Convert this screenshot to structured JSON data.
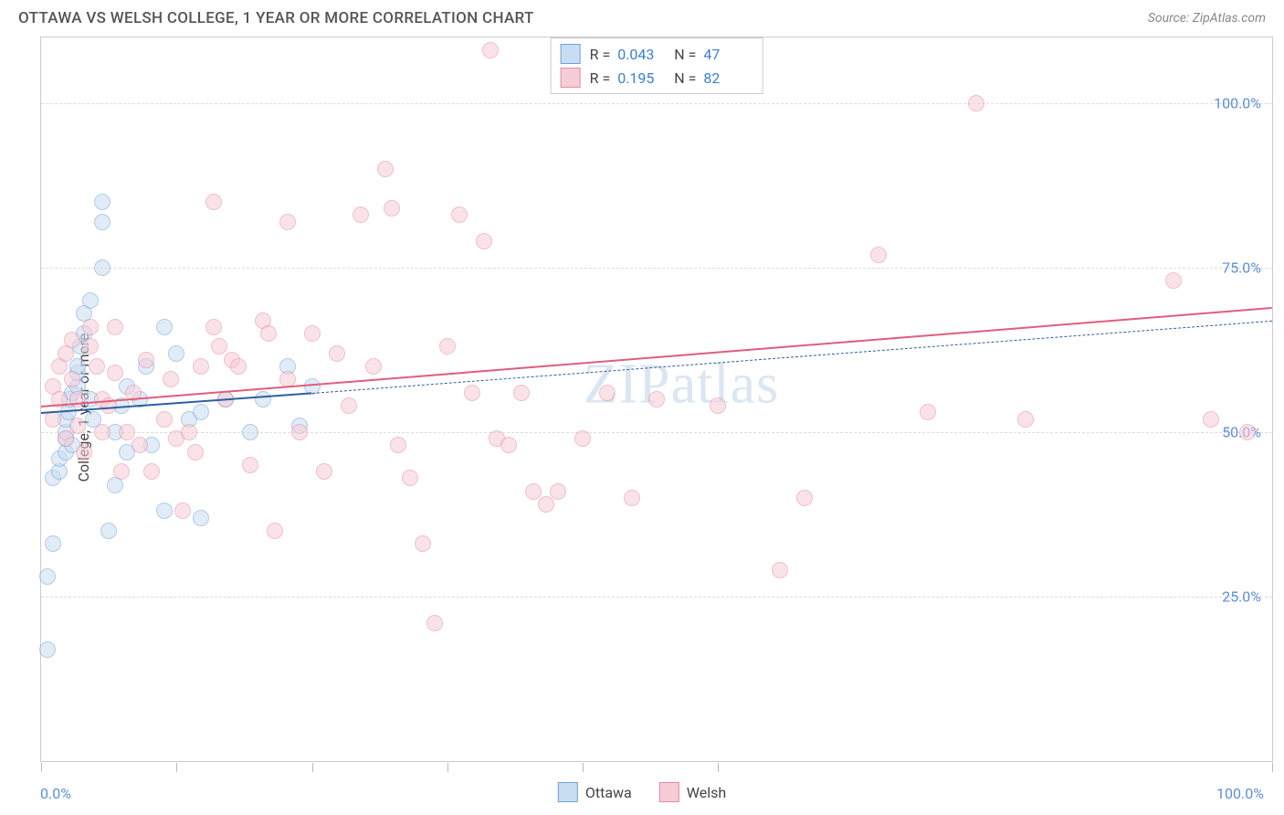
{
  "header": {
    "title": "OTTAWA VS WELSH COLLEGE, 1 YEAR OR MORE CORRELATION CHART",
    "source": "Source: ZipAtlas.com"
  },
  "chart": {
    "type": "scatter",
    "ylabel": "College, 1 year or more",
    "watermark": "ZIPatlas",
    "background_color": "#ffffff",
    "grid_color": "#dddddd",
    "border_color": "#cccccc",
    "xlim": [
      0,
      100
    ],
    "ylim": [
      0,
      110
    ],
    "y_ticks": [
      25,
      50,
      75,
      100
    ],
    "y_tick_labels": [
      "25.0%",
      "50.0%",
      "75.0%",
      "100.0%"
    ],
    "x_tick_positions": [
      0,
      11,
      22,
      33,
      44,
      55,
      100
    ],
    "x_axis_labels": [
      {
        "pos": 0,
        "text": "0.0%"
      },
      {
        "pos": 100,
        "text": "100.0%"
      }
    ],
    "tick_label_color": "#5b8fd6",
    "marker_radius": 9,
    "marker_border_width": 1.5,
    "series": [
      {
        "name": "Ottawa",
        "fill": "#c9ddf2",
        "stroke": "#6fa3d9",
        "fill_opacity": 0.55,
        "R": "0.043",
        "N": "47",
        "trend": {
          "x0": 0,
          "y0": 53,
          "x1": 22,
          "y1": 56,
          "color": "#2e5fa3",
          "width": 2.5,
          "dash": "solid",
          "extend_x1": 100,
          "extend_y1": 67,
          "extend_dash": "5,4",
          "extend_width": 1.4
        },
        "points": [
          [
            0.5,
            17
          ],
          [
            0.5,
            28
          ],
          [
            1,
            33
          ],
          [
            1,
            43
          ],
          [
            1.5,
            44
          ],
          [
            1.5,
            46
          ],
          [
            2,
            47
          ],
          [
            2,
            49
          ],
          [
            2,
            50
          ],
          [
            2,
            52
          ],
          [
            2.2,
            53
          ],
          [
            2.3,
            55
          ],
          [
            2.5,
            56
          ],
          [
            2.5,
            48
          ],
          [
            3,
            57
          ],
          [
            3,
            59
          ],
          [
            3,
            60
          ],
          [
            3.2,
            63
          ],
          [
            3.5,
            65
          ],
          [
            3.5,
            68
          ],
          [
            4,
            70
          ],
          [
            4,
            55
          ],
          [
            4.2,
            52
          ],
          [
            5,
            75
          ],
          [
            5,
            85
          ],
          [
            5,
            82
          ],
          [
            5.5,
            35
          ],
          [
            6,
            42
          ],
          [
            6,
            50
          ],
          [
            6.5,
            54
          ],
          [
            7,
            47
          ],
          [
            7,
            57
          ],
          [
            8,
            55
          ],
          [
            8.5,
            60
          ],
          [
            9,
            48
          ],
          [
            10,
            38
          ],
          [
            10,
            66
          ],
          [
            11,
            62
          ],
          [
            12,
            52
          ],
          [
            13,
            37
          ],
          [
            13,
            53
          ],
          [
            15,
            55
          ],
          [
            17,
            50
          ],
          [
            18,
            55
          ],
          [
            20,
            60
          ],
          [
            21,
            51
          ],
          [
            22,
            57
          ]
        ]
      },
      {
        "name": "Welsh",
        "fill": "#f6cdd7",
        "stroke": "#e48ba2",
        "fill_opacity": 0.55,
        "R": "0.195",
        "N": "82",
        "trend": {
          "x0": 0,
          "y0": 54,
          "x1": 100,
          "y1": 69,
          "color": "#e15d7d",
          "width": 2.8,
          "dash": "solid"
        },
        "points": [
          [
            1,
            52
          ],
          [
            1,
            57
          ],
          [
            1.5,
            55
          ],
          [
            1.5,
            60
          ],
          [
            2,
            62
          ],
          [
            2,
            49
          ],
          [
            2.5,
            58
          ],
          [
            2.5,
            64
          ],
          [
            3,
            55
          ],
          [
            3,
            51
          ],
          [
            3.5,
            47
          ],
          [
            4,
            63
          ],
          [
            4.5,
            60
          ],
          [
            5,
            55
          ],
          [
            5,
            50
          ],
          [
            5.5,
            54
          ],
          [
            6,
            59
          ],
          [
            6.5,
            44
          ],
          [
            7,
            50
          ],
          [
            7.5,
            56
          ],
          [
            8,
            48
          ],
          [
            8.5,
            61
          ],
          [
            9,
            44
          ],
          [
            10,
            52
          ],
          [
            10.5,
            58
          ],
          [
            11,
            49
          ],
          [
            11.5,
            38
          ],
          [
            12,
            50
          ],
          [
            12.5,
            47
          ],
          [
            13,
            60
          ],
          [
            14,
            66
          ],
          [
            14.5,
            63
          ],
          [
            15,
            55
          ],
          [
            15.5,
            61
          ],
          [
            16,
            60
          ],
          [
            17,
            45
          ],
          [
            18,
            67
          ],
          [
            18.5,
            65
          ],
          [
            19,
            35
          ],
          [
            20,
            58
          ],
          [
            21,
            50
          ],
          [
            22,
            65
          ],
          [
            23,
            44
          ],
          [
            24,
            62
          ],
          [
            25,
            54
          ],
          [
            26,
            83
          ],
          [
            27,
            60
          ],
          [
            28,
            90
          ],
          [
            28.5,
            84
          ],
          [
            29,
            48
          ],
          [
            30,
            43
          ],
          [
            31,
            33
          ],
          [
            32,
            21
          ],
          [
            33,
            63
          ],
          [
            34,
            83
          ],
          [
            35,
            56
          ],
          [
            36,
            79
          ],
          [
            36.5,
            108
          ],
          [
            37,
            49
          ],
          [
            38,
            48
          ],
          [
            39,
            56
          ],
          [
            40,
            41
          ],
          [
            41,
            39
          ],
          [
            42,
            41
          ],
          [
            44,
            49
          ],
          [
            46,
            56
          ],
          [
            48,
            40
          ],
          [
            50,
            55
          ],
          [
            55,
            54
          ],
          [
            60,
            29
          ],
          [
            62,
            40
          ],
          [
            68,
            77
          ],
          [
            72,
            53
          ],
          [
            76,
            100
          ],
          [
            80,
            52
          ],
          [
            92,
            73
          ],
          [
            95,
            52
          ],
          [
            98,
            50
          ],
          [
            14,
            85
          ],
          [
            20,
            82
          ],
          [
            6,
            66
          ],
          [
            4,
            66
          ]
        ]
      }
    ],
    "legend_bottom": [
      {
        "label": "Ottawa",
        "fill": "#c9ddf2",
        "stroke": "#6fa3d9"
      },
      {
        "label": "Welsh",
        "fill": "#f6cdd7",
        "stroke": "#e48ba2"
      }
    ]
  }
}
